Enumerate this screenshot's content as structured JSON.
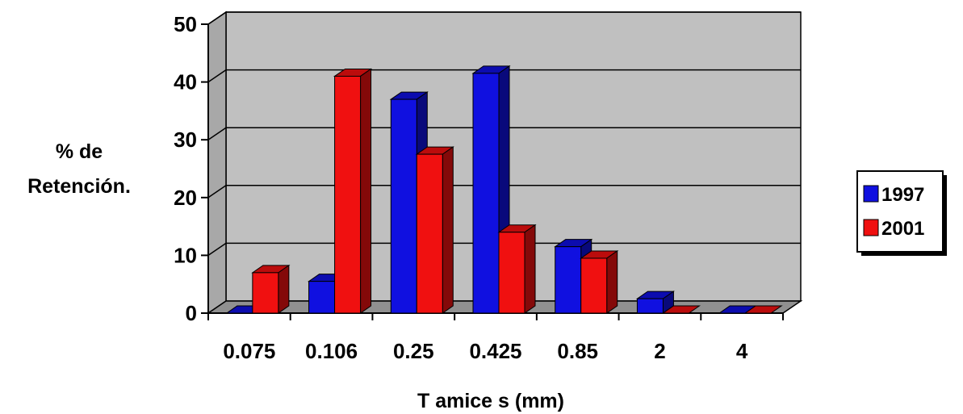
{
  "chart_data": {
    "type": "bar",
    "categories": [
      "0.075",
      "0.106",
      "0.25",
      "0.425",
      "0.85",
      "2",
      "4"
    ],
    "series": [
      {
        "name": "1997",
        "values": [
          0,
          5.5,
          37,
          41.5,
          11.5,
          2.5,
          0
        ],
        "color": "#1010e0"
      },
      {
        "name": "2001",
        "values": [
          7,
          41,
          27.5,
          14,
          9.5,
          0,
          0
        ],
        "color": "#f01010"
      }
    ],
    "ylabel": [
      "% de",
      "Retención."
    ],
    "xlabel": "T amice s (mm)",
    "ylim": [
      0,
      50
    ],
    "yticks": [
      0,
      10,
      20,
      30,
      40,
      50
    ],
    "grid": true,
    "legend_position": "right",
    "colors": {
      "wall": "#c0c0c0",
      "floor": "#909090",
      "gridline": "#000000"
    }
  }
}
